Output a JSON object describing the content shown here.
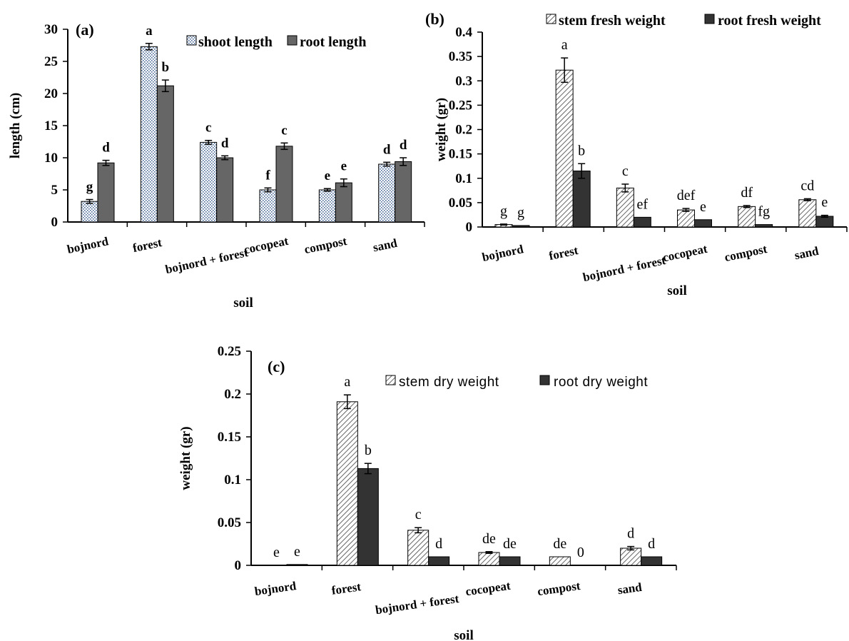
{
  "colors": {
    "pattern_fill": "#ffffff",
    "pattern_line": "#4a6a9a",
    "hatch_line": "#555555",
    "root_a": "#666666",
    "root_dark": "#333333",
    "axis": "#000000"
  },
  "chart_data": [
    {
      "id": "a",
      "type": "bar",
      "panel_label": "(a)",
      "title": "",
      "xlabel": "soil",
      "ylabel": "length (cm)",
      "categories": [
        "bojnord",
        "forest",
        "bojnord + forest",
        "cocopeat",
        "compost",
        "sand"
      ],
      "ylim": [
        0,
        30
      ],
      "yticks": [
        "0",
        "5",
        "10",
        "15",
        "20",
        "25",
        "30"
      ],
      "legend_position": "top-right",
      "series": [
        {
          "name": "shoot length",
          "values": [
            3.2,
            27.3,
            12.4,
            5.0,
            5.0,
            9.0
          ],
          "errors": [
            0.3,
            0.5,
            0.3,
            0.3,
            0.2,
            0.3
          ],
          "letters": [
            "g",
            "a",
            "c",
            "f",
            "e",
            "d"
          ]
        },
        {
          "name": "root length",
          "values": [
            9.2,
            21.2,
            10.0,
            11.8,
            6.1,
            9.4
          ],
          "errors": [
            0.4,
            0.9,
            0.3,
            0.5,
            0.6,
            0.6
          ],
          "letters": [
            "d",
            "b",
            "d",
            "c",
            "e",
            "d"
          ]
        }
      ]
    },
    {
      "id": "b",
      "type": "bar",
      "panel_label": "(b)",
      "title": "",
      "xlabel": "soil",
      "ylabel": "weight (gr)",
      "categories": [
        "bojnord",
        "forest",
        "bojnord + forest",
        "cocopeat",
        "compost",
        "sand"
      ],
      "ylim": [
        0,
        0.4
      ],
      "yticks": [
        "0",
        "0.05",
        "0.1",
        "0.15",
        "0.2",
        "0.25",
        "0.3",
        "0.35",
        "0.4"
      ],
      "legend_position": "top",
      "series": [
        {
          "name": "stem fresh weight",
          "values": [
            0.005,
            0.322,
            0.08,
            0.035,
            0.042,
            0.056
          ],
          "errors": [
            0.001,
            0.025,
            0.008,
            0.003,
            0.002,
            0.002
          ],
          "letters": [
            "g",
            "a",
            "c",
            "def",
            "df",
            "cd"
          ]
        },
        {
          "name": "root fresh weight",
          "values": [
            0.003,
            0.115,
            0.02,
            0.015,
            0.005,
            0.022
          ],
          "errors": [
            0.0,
            0.015,
            0.0,
            0.0,
            0.0,
            0.002
          ],
          "letters": [
            "g",
            "b",
            "ef",
            "e",
            "fg",
            "e"
          ]
        }
      ]
    },
    {
      "id": "c",
      "type": "bar",
      "panel_label": "(c)",
      "title": "",
      "xlabel": "soil",
      "ylabel": "weight (gr)",
      "categories": [
        "bojnord",
        "forest",
        "bojnord + forest",
        "cocopeat",
        "compost",
        "sand"
      ],
      "ylim": [
        0,
        0.25
      ],
      "yticks": [
        "0",
        "0.05",
        "0.1",
        "0.15",
        "0.2",
        "0.25"
      ],
      "legend_position": "top-right",
      "series": [
        {
          "name": "stem dry weight",
          "values": [
            0.0,
            0.191,
            0.041,
            0.015,
            0.01,
            0.02
          ],
          "errors": [
            0.0,
            0.008,
            0.003,
            0.001,
            0.0,
            0.002
          ],
          "letters": [
            "e",
            "a",
            "c",
            "de",
            "de",
            "d"
          ]
        },
        {
          "name": "root dry weight",
          "values": [
            0.001,
            0.113,
            0.01,
            0.01,
            0.0,
            0.01
          ],
          "errors": [
            0.0,
            0.006,
            0.0,
            0.0,
            0.0,
            0.0
          ],
          "letters": [
            "e",
            "b",
            "d",
            "de",
            "0",
            "d"
          ]
        }
      ]
    }
  ]
}
